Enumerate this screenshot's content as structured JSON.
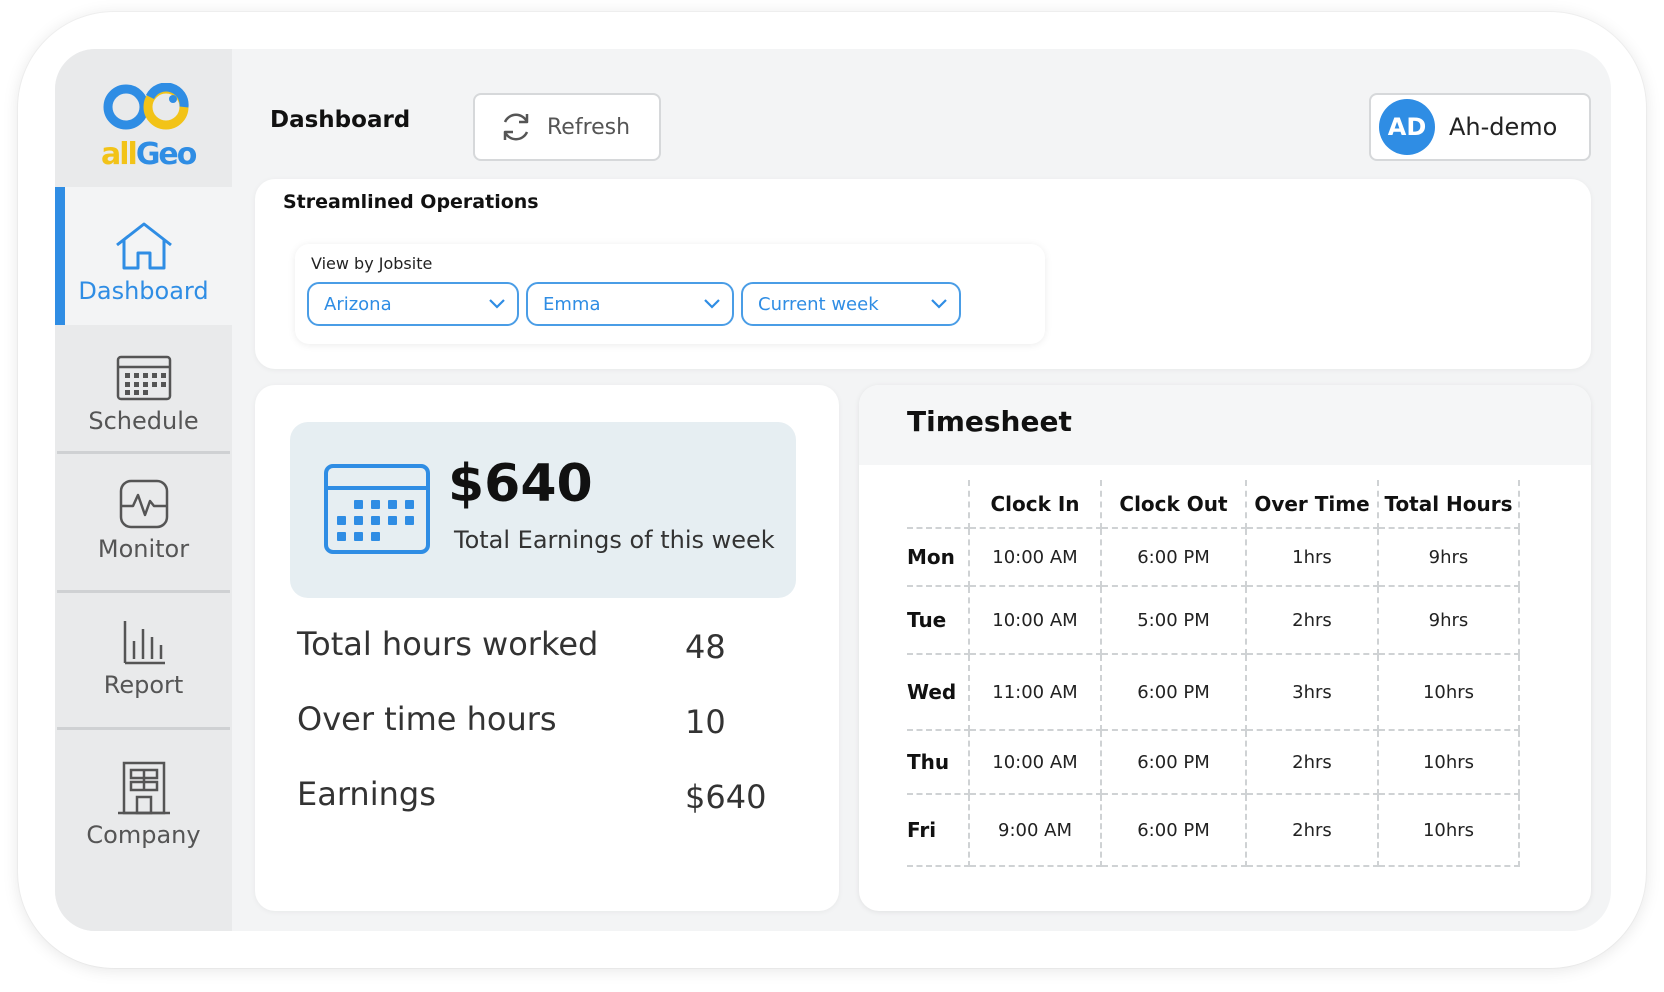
{
  "app": {
    "logo_text_all": "all",
    "logo_text_geo": "Geo",
    "accent_color": "#2f8de4",
    "logo_yellow": "#f2c318"
  },
  "sidebar": {
    "items": [
      {
        "label": "Dashboard",
        "icon": "home-icon",
        "active": true
      },
      {
        "label": "Schedule",
        "icon": "calendar-icon",
        "active": false
      },
      {
        "label": "Monitor",
        "icon": "heartbeat-icon",
        "active": false
      },
      {
        "label": "Report",
        "icon": "bar-chart-icon",
        "active": false
      },
      {
        "label": "Company",
        "icon": "building-icon",
        "active": false
      }
    ]
  },
  "header": {
    "title": "Dashboard",
    "refresh_label": "Refresh",
    "user_initials": "AD",
    "user_name": "Ah-demo"
  },
  "operations": {
    "title": "Streamlined Operations",
    "filter_label": "View by Jobsite",
    "filters": [
      "Arizona",
      "Emma",
      "Current week"
    ]
  },
  "earnings": {
    "amount": "$640",
    "subtitle": "Total Earnings of this week",
    "stats": [
      {
        "label": "Total hours worked",
        "value": "48"
      },
      {
        "label": "Over time hours",
        "value": "10"
      },
      {
        "label": "Earnings",
        "value": "$640"
      }
    ]
  },
  "timesheet": {
    "title": "Timesheet",
    "columns": [
      "",
      "Clock In",
      "Clock Out",
      "Over Time",
      "Total Hours"
    ],
    "rows": [
      {
        "day": "Mon",
        "in": "10:00 AM",
        "out": "6:00 PM",
        "ot": "1hrs",
        "total": "9hrs"
      },
      {
        "day": "Tue",
        "in": "10:00 AM",
        "out": "5:00 PM",
        "ot": "2hrs",
        "total": "9hrs"
      },
      {
        "day": "Wed",
        "in": "11:00 AM",
        "out": "6:00 PM",
        "ot": "3hrs",
        "total": "10hrs"
      },
      {
        "day": "Thu",
        "in": "10:00 AM",
        "out": "6:00 PM",
        "ot": "2hrs",
        "total": "10hrs"
      },
      {
        "day": "Fri",
        "in": "9:00 AM",
        "out": "6:00 PM",
        "ot": "2hrs",
        "total": "10hrs"
      }
    ]
  }
}
